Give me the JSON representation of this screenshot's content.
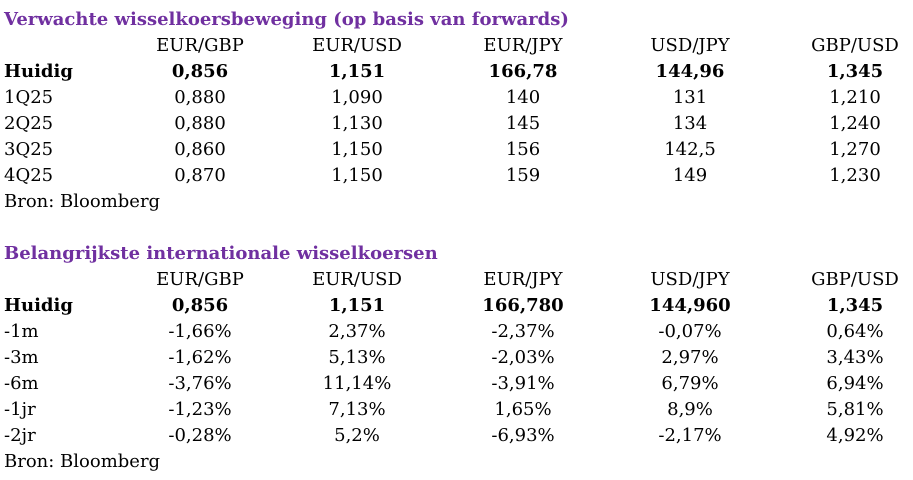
{
  "tables": [
    {
      "title": "Verwachte wisselkoersbeweging (op basis van forwards)",
      "headers": [
        "EUR/GBP",
        "EUR/USD",
        "EUR/JPY",
        "USD/JPY",
        "GBP/USD"
      ],
      "rows": [
        [
          "Huidig",
          "0,856",
          "1,151",
          "166,78",
          "144,96",
          "1,345"
        ],
        [
          "1Q25",
          "0,880",
          "1,090",
          "140",
          "131",
          "1,210"
        ],
        [
          "2Q25",
          "0,880",
          "1,130",
          "145",
          "134",
          "1,240"
        ],
        [
          "3Q25",
          "0,860",
          "1,150",
          "156",
          "142,5",
          "1,270"
        ],
        [
          "4Q25",
          "0,870",
          "1,150",
          "159",
          "149",
          "1,230"
        ]
      ],
      "source": "Bron: Bloomberg"
    },
    {
      "title": "Belangrijkste internationale wisselkoersen",
      "headers": [
        "EUR/GBP",
        "EUR/USD",
        "EUR/JPY",
        "USD/JPY",
        "GBP/USD"
      ],
      "rows": [
        [
          "Huidig",
          "0,856",
          "1,151",
          "166,780",
          "144,960",
          "1,345"
        ],
        [
          "-1m",
          "-1,66%",
          "2,37%",
          "-2,37%",
          "-0,07%",
          "0,64%"
        ],
        [
          "-3m",
          "-1,62%",
          "5,13%",
          "-2,03%",
          "2,97%",
          "3,43%"
        ],
        [
          "-6m",
          "-3,76%",
          "11,14%",
          "-3,91%",
          "6,79%",
          "6,94%"
        ],
        [
          "-1jr",
          "-1,23%",
          "7,13%",
          "1,65%",
          "8,9%",
          "5,81%"
        ],
        [
          "-2jr",
          "-0,28%",
          "5,2%",
          "-6,93%",
          "-2,17%",
          "4,92%"
        ]
      ],
      "source": "Bron: Bloomberg"
    }
  ]
}
